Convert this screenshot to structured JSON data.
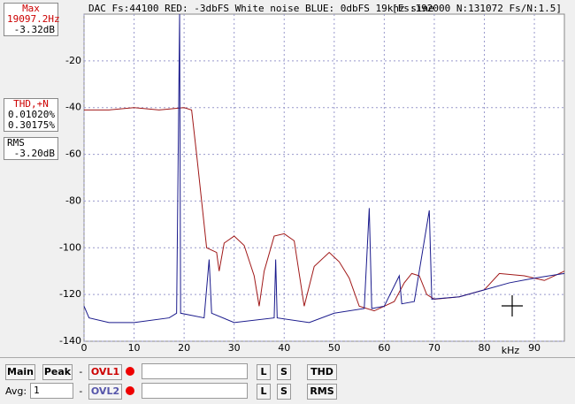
{
  "header": {
    "title": "DAC Fs:44100 RED: -3dbFS White noise BLUE: 0dbFS 19khz sine",
    "info": "[Fs:192000 N:131072 Fs/N:1.5]"
  },
  "panels": {
    "max": {
      "label": "Max",
      "freq": "19097.2Hz",
      "level": "-3.32dB"
    },
    "thd": {
      "label": "THD,+N",
      "v1": "0.01020%",
      "v2": "0.30175%"
    },
    "rms": {
      "label": "RMS",
      "level": "-3.20dB"
    }
  },
  "controls": {
    "main": "Main",
    "peak": "Peak",
    "sep1": "-",
    "ovl1": "OVL1",
    "l1": "L",
    "s1": "S",
    "thd": "THD",
    "avg": "Avg:",
    "avg_value": "1",
    "sep2": "-",
    "ovl2": "OVL2",
    "l2": "L",
    "s2": "S",
    "rms": "RMS"
  },
  "chart_data": {
    "type": "line",
    "x_label": "kHz",
    "xlim": [
      0,
      96
    ],
    "ylim": [
      -140,
      0
    ],
    "xticks": [
      0,
      10,
      20,
      30,
      40,
      50,
      60,
      70,
      80,
      90
    ],
    "yticks": [
      -140,
      -120,
      -100,
      -80,
      -60,
      -40,
      -20
    ],
    "grid": true,
    "series": [
      {
        "color": "#a01818",
        "x": [
          0,
          5,
          10,
          15,
          20,
          21.5,
          22.5,
          23.5,
          24.5,
          25.5,
          26.5,
          27,
          28,
          30,
          32,
          34,
          35,
          36,
          38,
          40,
          42,
          44,
          46,
          49,
          51,
          53,
          55,
          58,
          62,
          64,
          65.5,
          67,
          68.5,
          70,
          75,
          80,
          83,
          88,
          92,
          96
        ],
        "values": [
          -41,
          -41,
          -40,
          -41,
          -40,
          -41,
          -60,
          -80,
          -100,
          -101,
          -102,
          -110,
          -98,
          -95,
          -99,
          -112,
          -125,
          -110,
          -95,
          -94,
          -97,
          -125,
          -108,
          -102,
          -106,
          -113,
          -125,
          -127,
          -123,
          -115,
          -111,
          -112,
          -120,
          -122,
          -121,
          -118,
          -111,
          -112,
          -114,
          -110
        ]
      },
      {
        "color": "#1a1a8c",
        "x": [
          0,
          1,
          5,
          10,
          17,
          18.5,
          19.1,
          19.3,
          24,
          25,
          25.5,
          30,
          38,
          38.3,
          38.6,
          45,
          50,
          56,
          57,
          57.5,
          60,
          63,
          63.5,
          66,
          69,
          69.5,
          75,
          80,
          85,
          90,
          96
        ],
        "values": [
          -125,
          -130,
          -132,
          -132,
          -130,
          -128,
          0,
          -128,
          -130,
          -105,
          -128,
          -132,
          -130,
          -105,
          -130,
          -132,
          -128,
          -126,
          -83,
          -126,
          -125,
          -112,
          -124,
          -123,
          -84,
          -122,
          -121,
          -118,
          -115,
          -113,
          -111
        ]
      }
    ]
  }
}
